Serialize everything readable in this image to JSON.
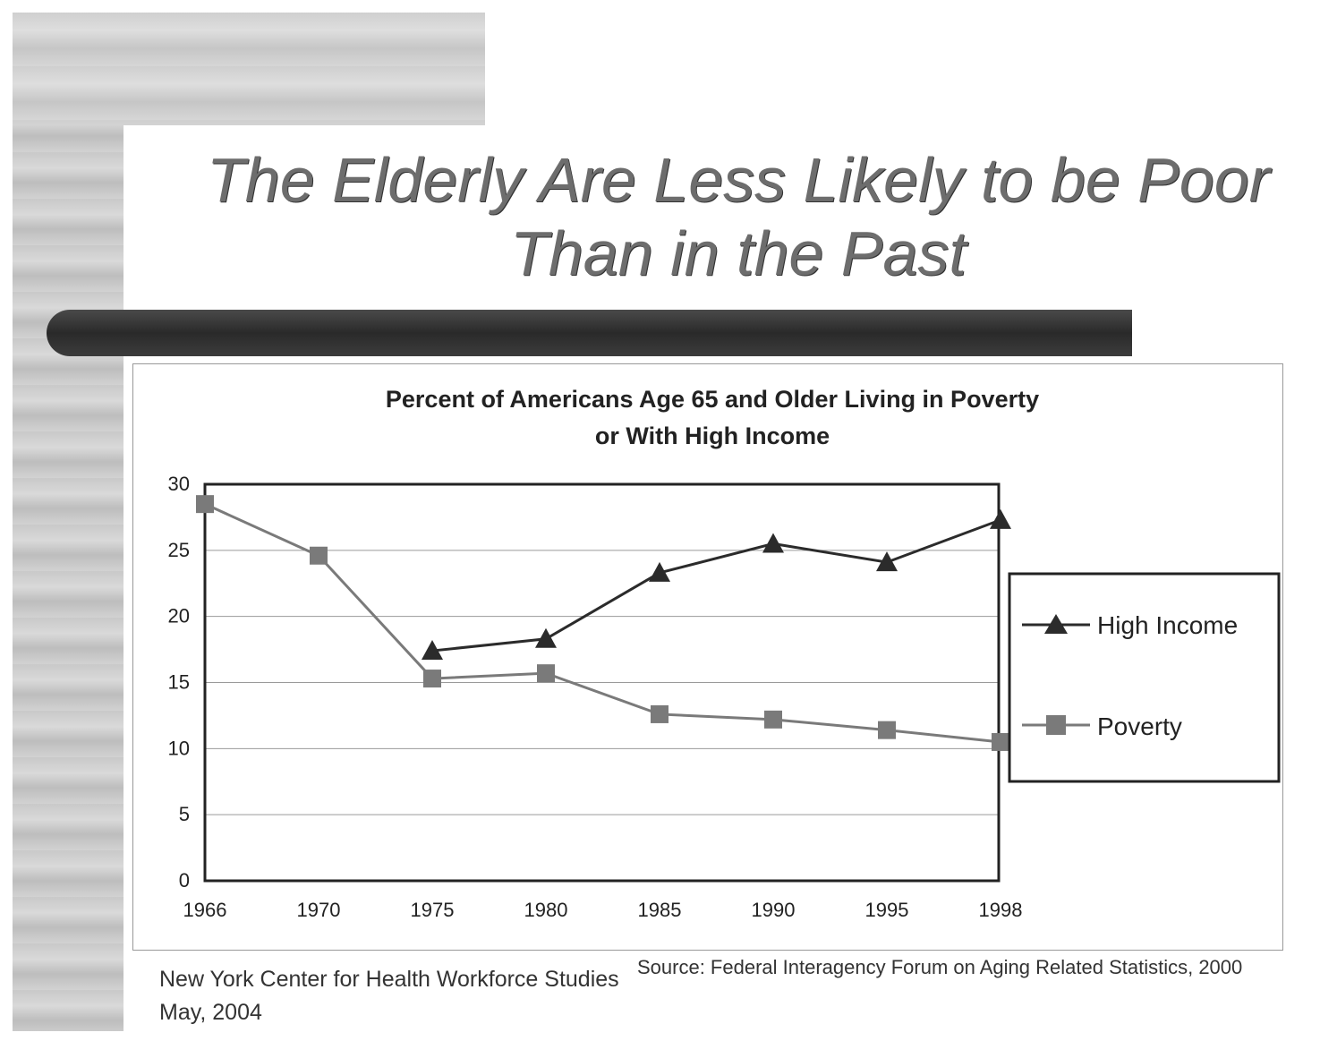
{
  "slide": {
    "title_line1": "The Elderly Are Less Likely to be Poor",
    "title_line2": "Than in the Past"
  },
  "footer": {
    "org": "New York Center for Health Workforce Studies",
    "date": "May, 2004",
    "source": "Source: Federal Interagency Forum on Aging Related Statistics, 2000"
  },
  "chart_data": {
    "type": "line",
    "title_line1": "Percent of Americans Age 65 and Older Living in Poverty",
    "title_line2": "or With High Income",
    "categories": [
      "1966",
      "1970",
      "1975",
      "1980",
      "1985",
      "1990",
      "1995",
      "1998"
    ],
    "series": [
      {
        "name": "High Income",
        "marker": "triangle",
        "color": "#2b2b2b",
        "values": [
          null,
          null,
          17.4,
          18.3,
          23.3,
          25.5,
          24.1,
          27.3
        ]
      },
      {
        "name": "Poverty",
        "marker": "square",
        "color": "#7a7a7a",
        "values": [
          28.5,
          24.6,
          15.3,
          15.7,
          12.6,
          12.2,
          11.4,
          10.5
        ]
      }
    ],
    "yticks": [
      "0",
      "5",
      "10",
      "15",
      "20",
      "25",
      "30"
    ],
    "ylim": [
      0,
      30
    ],
    "grid": true,
    "legend": "right"
  }
}
